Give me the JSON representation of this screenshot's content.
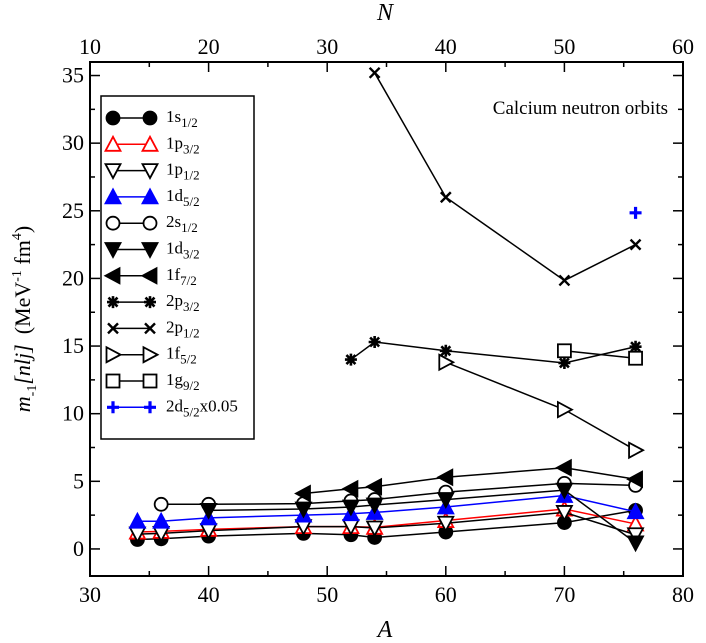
{
  "chart_data": {
    "type": "line",
    "annotation": "Calcium neutron orbits",
    "xaxis_bottom": {
      "label": "A",
      "range": [
        30,
        80
      ],
      "ticks": [
        "30",
        "40",
        "50",
        "60",
        "70",
        "80"
      ]
    },
    "xaxis_top": {
      "label": "N",
      "range": [
        10,
        60
      ],
      "ticks": [
        "10",
        "20",
        "30",
        "40",
        "50",
        "60"
      ]
    },
    "yaxis": {
      "label_main": "m",
      "label_sub": "-1",
      "label_bracket": "[nlj]",
      "label_units": "(MeV",
      "label_units_sup": "-1",
      "label_units_fm": " fm",
      "label_units_fm_sup": "4",
      "label_units_close": ")",
      "range": [
        -2,
        36
      ],
      "ticks": [
        "0",
        "5",
        "10",
        "15",
        "20",
        "25",
        "30",
        "35"
      ]
    },
    "legend_position": "top-left",
    "series": [
      {
        "name": "1s",
        "sub": "1/2",
        "suffix": "",
        "marker": "circle",
        "filled": true,
        "color": "#000000",
        "points": [
          [
            34,
            0.7
          ],
          [
            36,
            0.75
          ],
          [
            40,
            0.95
          ],
          [
            48,
            1.15
          ],
          [
            52,
            1.05
          ],
          [
            54,
            0.85
          ],
          [
            60,
            1.25
          ],
          [
            70,
            1.95
          ],
          [
            76,
            2.85
          ]
        ]
      },
      {
        "name": "1p",
        "sub": "3/2",
        "suffix": "",
        "marker": "triangle-up",
        "filled": false,
        "color": "#ff0000",
        "points": [
          [
            34,
            1.25
          ],
          [
            36,
            1.3
          ],
          [
            40,
            1.45
          ],
          [
            48,
            1.65
          ],
          [
            52,
            1.65
          ],
          [
            54,
            1.6
          ],
          [
            60,
            2.1
          ],
          [
            70,
            2.95
          ],
          [
            76,
            1.85
          ]
        ]
      },
      {
        "name": "1p",
        "sub": "1/2",
        "suffix": "",
        "marker": "triangle-down",
        "filled": false,
        "color": "#000000",
        "points": [
          [
            34,
            1.1
          ],
          [
            36,
            1.15
          ],
          [
            40,
            1.35
          ],
          [
            48,
            1.65
          ],
          [
            52,
            1.65
          ],
          [
            54,
            1.55
          ],
          [
            60,
            1.9
          ],
          [
            70,
            2.7
          ],
          [
            76,
            1.05
          ]
        ]
      },
      {
        "name": "1d",
        "sub": "5/2",
        "suffix": "",
        "marker": "triangle-up",
        "filled": true,
        "color": "#0000ff",
        "points": [
          [
            34,
            2.05
          ],
          [
            36,
            2.05
          ],
          [
            40,
            2.3
          ],
          [
            48,
            2.5
          ],
          [
            52,
            2.6
          ],
          [
            54,
            2.7
          ],
          [
            60,
            3.1
          ],
          [
            70,
            3.95
          ],
          [
            76,
            2.75
          ]
        ]
      },
      {
        "name": "2s",
        "sub": "1/2",
        "suffix": "",
        "marker": "circle",
        "filled": false,
        "color": "#000000",
        "points": [
          [
            36,
            3.3
          ],
          [
            40,
            3.3
          ],
          [
            48,
            3.35
          ],
          [
            52,
            3.55
          ],
          [
            54,
            3.65
          ],
          [
            60,
            4.2
          ],
          [
            70,
            4.85
          ],
          [
            76,
            4.7
          ]
        ]
      },
      {
        "name": "1d",
        "sub": "3/2",
        "suffix": "",
        "marker": "triangle-down",
        "filled": true,
        "color": "#000000",
        "points": [
          [
            40,
            2.85
          ],
          [
            48,
            2.95
          ],
          [
            52,
            3.1
          ],
          [
            54,
            3.25
          ],
          [
            60,
            3.65
          ],
          [
            70,
            4.35
          ],
          [
            76,
            0.45
          ]
        ]
      },
      {
        "name": "1f",
        "sub": "7/2",
        "suffix": "",
        "marker": "triangle-left",
        "filled": true,
        "color": "#000000",
        "points": [
          [
            48,
            4.1
          ],
          [
            52,
            4.45
          ],
          [
            54,
            4.6
          ],
          [
            60,
            5.3
          ],
          [
            70,
            6.0
          ],
          [
            76,
            5.15
          ]
        ]
      },
      {
        "name": "2p",
        "sub": "3/2",
        "suffix": "",
        "marker": "asterisk",
        "filled": true,
        "color": "#000000",
        "points": [
          [
            52,
            14.0
          ],
          [
            54,
            15.3
          ],
          [
            60,
            14.65
          ],
          [
            70,
            13.75
          ],
          [
            76,
            14.95
          ]
        ]
      },
      {
        "name": "2p",
        "sub": "1/2",
        "suffix": "",
        "marker": "cross",
        "filled": true,
        "color": "#000000",
        "points": [
          [
            54,
            35.2
          ],
          [
            60,
            26.0
          ],
          [
            70,
            19.85
          ],
          [
            76,
            22.5
          ]
        ]
      },
      {
        "name": "1f",
        "sub": "5/2",
        "suffix": "",
        "marker": "triangle-right",
        "filled": false,
        "color": "#000000",
        "points": [
          [
            60,
            13.8
          ],
          [
            70,
            10.3
          ],
          [
            76,
            7.3
          ]
        ]
      },
      {
        "name": "1g",
        "sub": "9/2",
        "suffix": "",
        "marker": "square",
        "filled": false,
        "color": "#000000",
        "points": [
          [
            70,
            14.65
          ],
          [
            76,
            14.1
          ]
        ]
      },
      {
        "name": "2d",
        "sub": "5/2",
        "suffix": "x0.05",
        "marker": "plus",
        "filled": true,
        "color": "#0000ff",
        "points": [
          [
            76,
            24.85
          ]
        ]
      }
    ]
  }
}
